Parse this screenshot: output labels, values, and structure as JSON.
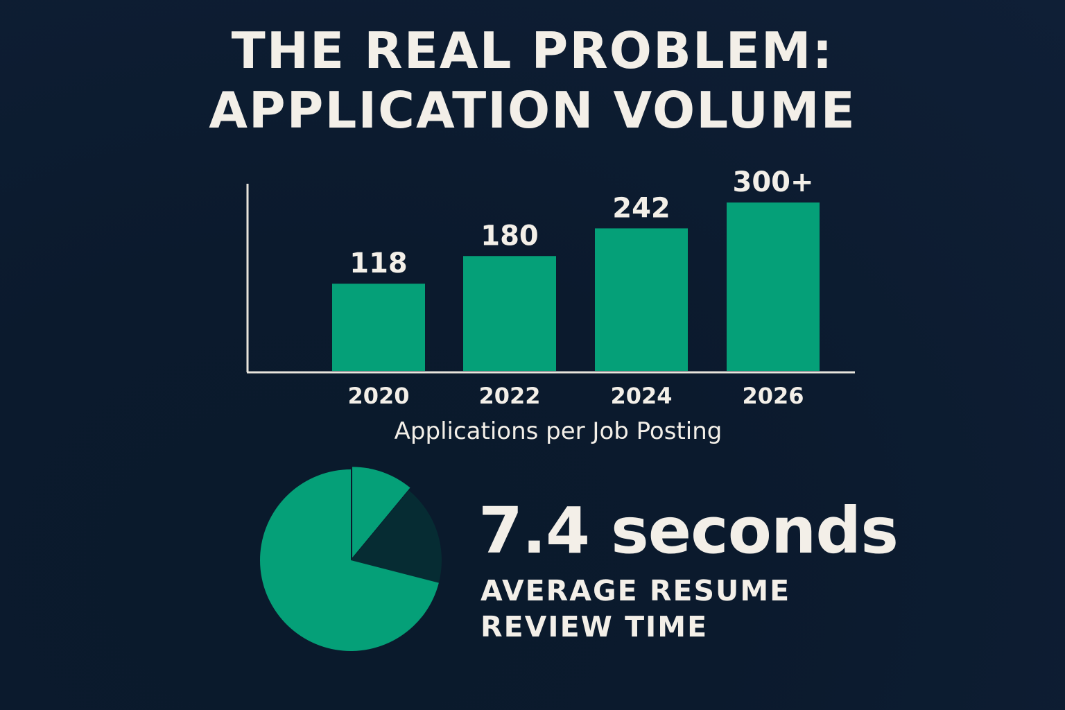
{
  "title_line1": "THE REAL PROBLEM:",
  "title_line2": "APPLICATION VOLUME",
  "colors": {
    "background": "#0c1b2e",
    "accent": "#05a078",
    "dark_slice": "#062c33",
    "text": "#f3efe8"
  },
  "chart_data": [
    {
      "type": "bar",
      "categories": [
        "2020",
        "2022",
        "2024",
        "2026"
      ],
      "values": [
        118,
        180,
        242,
        300
      ],
      "data_labels": [
        "118",
        "180",
        "242",
        "300+"
      ],
      "xlabel": "Applications per Job Posting",
      "ylabel": "",
      "grid": false
    },
    {
      "type": "pie",
      "values": [
        0.11,
        0.18,
        0.71
      ],
      "slice_colors": [
        "#05a078",
        "#062c33",
        "#05a078"
      ],
      "exploded": [
        true,
        false,
        false
      ]
    }
  ],
  "stat": {
    "value": "7.4 seconds",
    "label_line1": "AVERAGE RESUME",
    "label_line2": "REVIEW TIME"
  }
}
